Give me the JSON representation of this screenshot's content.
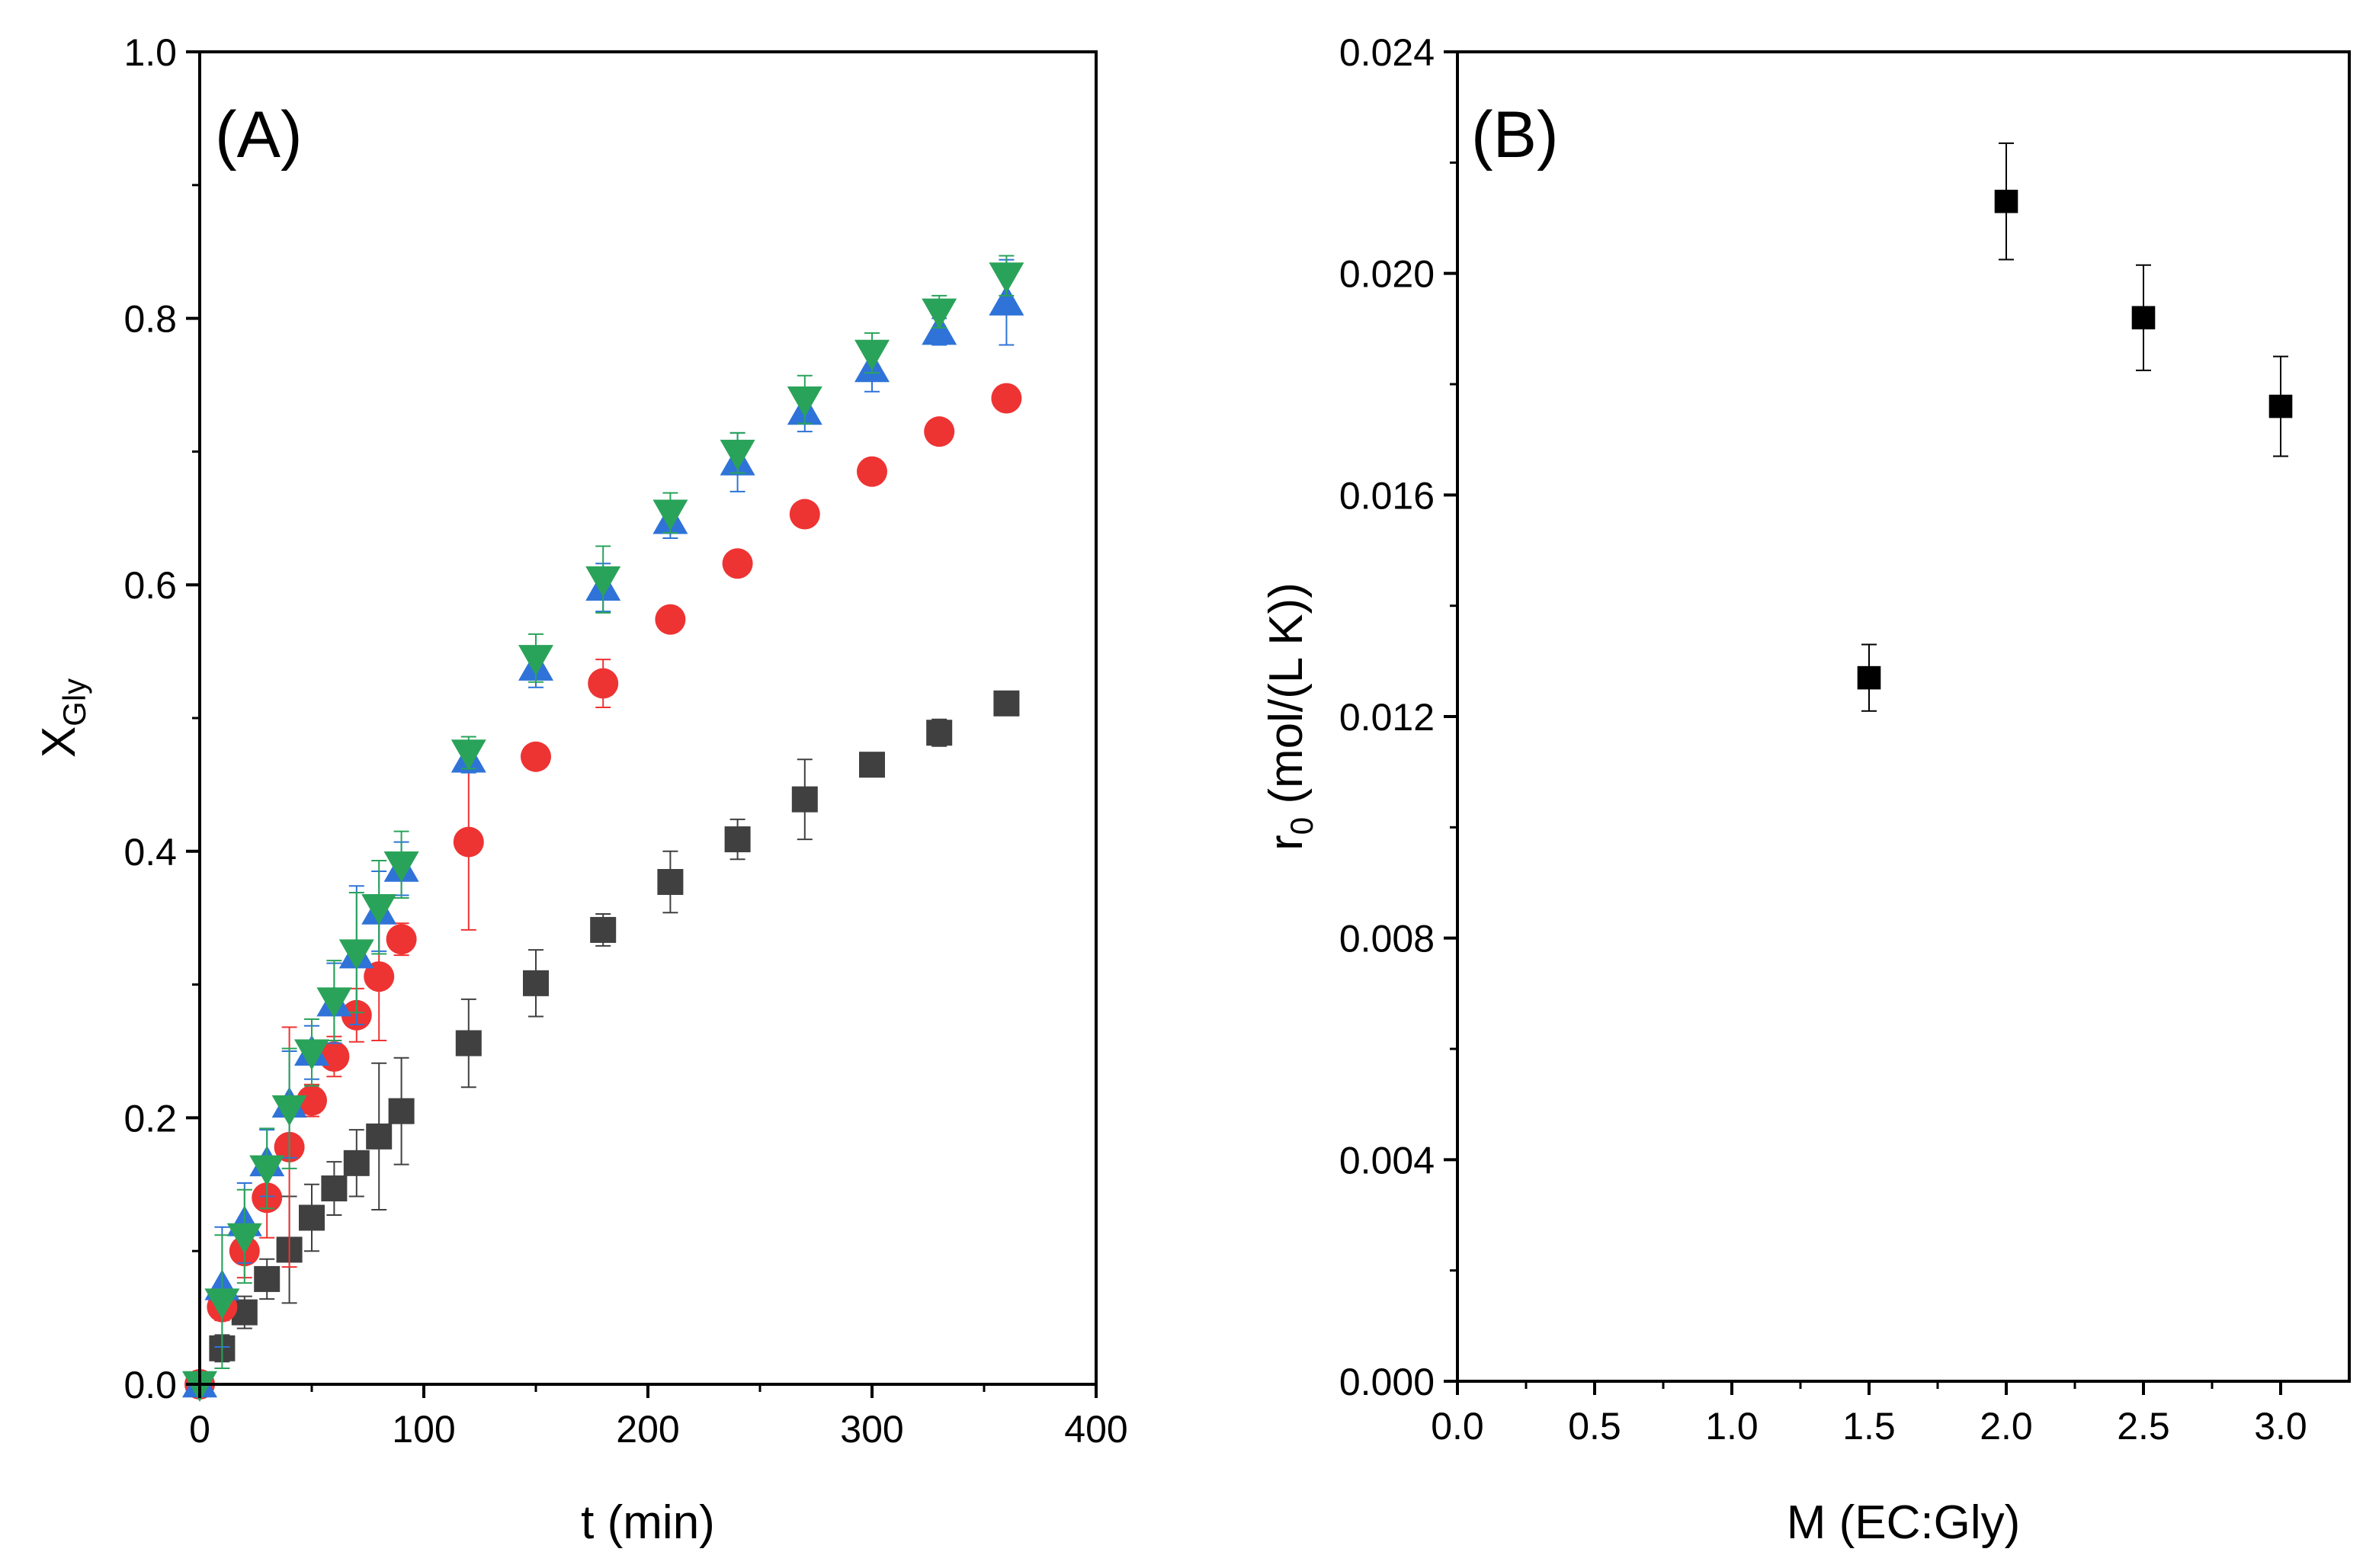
{
  "chart_data": [
    {
      "type": "scatter",
      "panel_label": "(A)",
      "xlabel": "t (min)",
      "ylabel_main": "X",
      "ylabel_sub": "Gly",
      "xlim": [
        0,
        400
      ],
      "ylim": [
        0,
        1.0
      ],
      "xticks": [
        "0",
        "100",
        "200",
        "300",
        "400"
      ],
      "yticks": [
        "0.0",
        "0.2",
        "0.4",
        "0.6",
        "0.8",
        "1.0"
      ],
      "series": [
        {
          "name": "series-1",
          "marker": "square",
          "color": "#404040",
          "x": [
            0,
            10,
            20,
            30,
            40,
            50,
            60,
            70,
            80,
            90,
            120,
            150,
            180,
            210,
            240,
            270,
            300,
            330,
            360
          ],
          "y": [
            0.0,
            0.027,
            0.054,
            0.079,
            0.101,
            0.125,
            0.147,
            0.166,
            0.186,
            0.205,
            0.256,
            0.301,
            0.341,
            0.377,
            0.409,
            0.439,
            0.465,
            0.489,
            0.511
          ],
          "err": [
            0,
            0.01,
            0.012,
            0.015,
            0.04,
            0.025,
            0.02,
            0.025,
            0.055,
            0.04,
            0.033,
            0.025,
            0.012,
            0.023,
            0.015,
            0.03,
            0.007,
            0.01,
            0.007
          ]
        },
        {
          "name": "series-2",
          "marker": "circle",
          "color": "#ee3333",
          "x": [
            0,
            10,
            20,
            30,
            40,
            50,
            60,
            70,
            80,
            90,
            120,
            150,
            180,
            210,
            240,
            270,
            300,
            330,
            360
          ],
          "y": [
            0.0,
            0.058,
            0.1,
            0.14,
            0.178,
            0.213,
            0.246,
            0.277,
            0.306,
            0.334,
            0.407,
            0.471,
            0.526,
            0.574,
            0.616,
            0.653,
            0.685,
            0.715,
            0.74
          ],
          "err": [
            0,
            0.01,
            0.02,
            0.03,
            0.09,
            0.012,
            0.015,
            0.02,
            0.048,
            0.012,
            0.066,
            0.007,
            0.018,
            0.007,
            0.007,
            0.007,
            0.007,
            0.007,
            0.007
          ]
        },
        {
          "name": "series-3",
          "marker": "triangle-up",
          "color": "#2f73d8",
          "x": [
            0,
            10,
            20,
            30,
            40,
            50,
            60,
            70,
            80,
            90,
            120,
            150,
            180,
            210,
            240,
            270,
            300,
            330,
            360
          ],
          "y": [
            0.0,
            0.073,
            0.121,
            0.166,
            0.21,
            0.249,
            0.286,
            0.322,
            0.355,
            0.387,
            0.469,
            0.538,
            0.598,
            0.648,
            0.692,
            0.73,
            0.762,
            0.79,
            0.812
          ],
          "err": [
            0,
            0.045,
            0.03,
            0.025,
            0.04,
            0.02,
            0.03,
            0.052,
            0.03,
            0.02,
            0.01,
            0.015,
            0.018,
            0.013,
            0.022,
            0.015,
            0.017,
            0.01,
            0.032
          ]
        },
        {
          "name": "series-4",
          "marker": "triangle-down",
          "color": "#2aa35a",
          "x": [
            0,
            10,
            20,
            30,
            40,
            50,
            60,
            70,
            80,
            90,
            120,
            150,
            180,
            210,
            240,
            270,
            300,
            330,
            360
          ],
          "y": [
            0.0,
            0.062,
            0.111,
            0.162,
            0.207,
            0.249,
            0.288,
            0.324,
            0.358,
            0.39,
            0.474,
            0.545,
            0.604,
            0.654,
            0.699,
            0.739,
            0.774,
            0.805,
            0.832
          ],
          "err": [
            0,
            0.05,
            0.035,
            0.03,
            0.045,
            0.025,
            0.03,
            0.045,
            0.035,
            0.025,
            0.012,
            0.018,
            0.025,
            0.015,
            0.015,
            0.018,
            0.015,
            0.012,
            0.015
          ]
        }
      ]
    },
    {
      "type": "scatter",
      "panel_label": "(B)",
      "xlabel": "M (EC:Gly)",
      "ylabel_main": "r",
      "ylabel_sub": "0",
      "ylabel_rest": " (mol/(L K))",
      "xlim": [
        0,
        3.25
      ],
      "ylim": [
        0,
        0.024
      ],
      "xticks": [
        "0.0",
        "0.5",
        "1.0",
        "1.5",
        "2.0",
        "2.5",
        "3.0"
      ],
      "yticks": [
        "0.000",
        "0.004",
        "0.008",
        "0.012",
        "0.016",
        "0.020",
        "0.024"
      ],
      "series": [
        {
          "name": "initial-rate",
          "marker": "square",
          "color": "#000000",
          "x": [
            1.5,
            2.0,
            2.5,
            3.0
          ],
          "y": [
            0.0127,
            0.0213,
            0.0192,
            0.0176
          ],
          "err": [
            0.0006,
            0.00105,
            0.00095,
            0.0009
          ]
        }
      ]
    }
  ]
}
